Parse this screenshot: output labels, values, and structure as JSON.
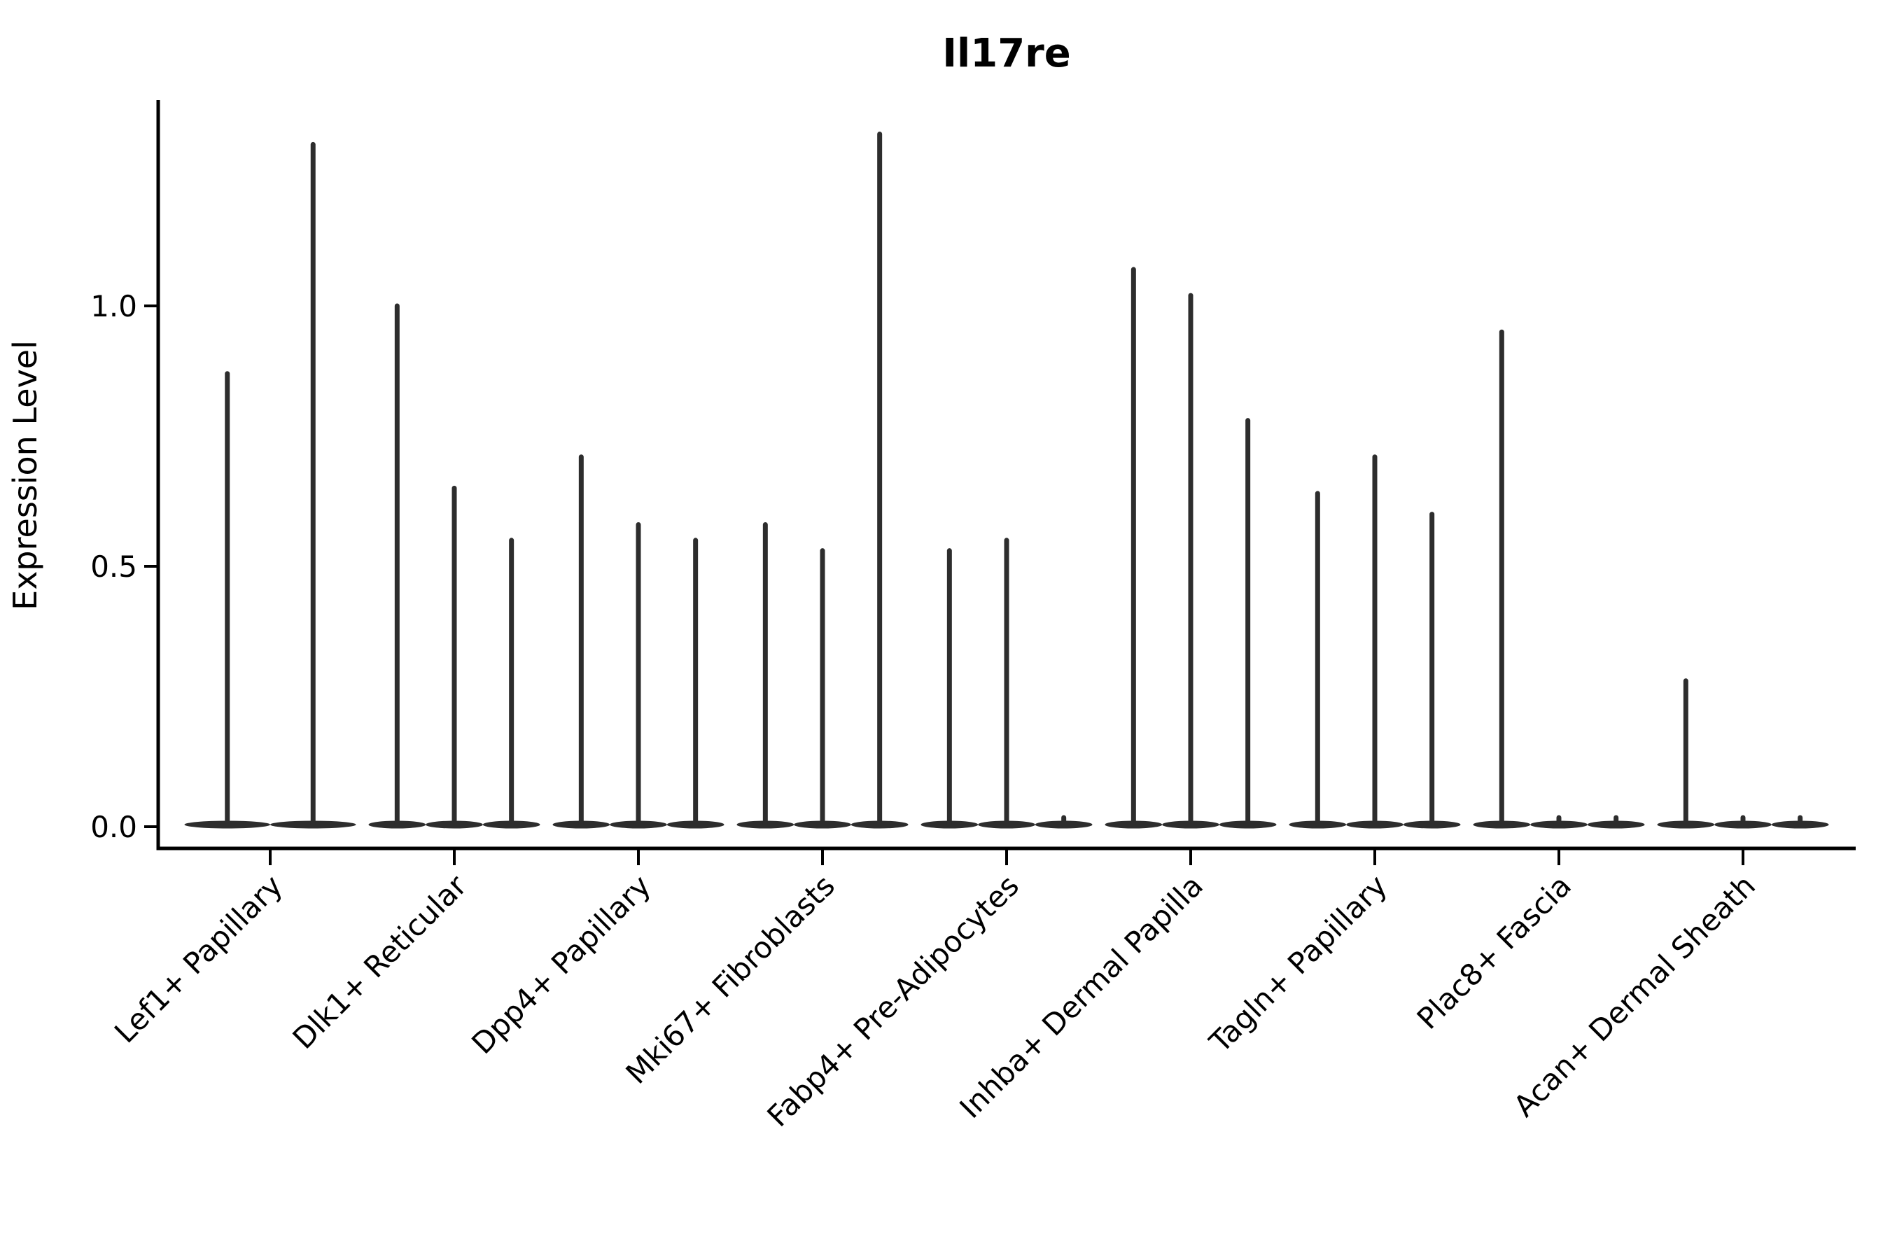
{
  "chart_data": {
    "type": "violin",
    "title": "Il17re",
    "ylabel": "Expression Level",
    "xlabel": "",
    "yticks": [
      "0.0",
      "0.5",
      "1.0"
    ],
    "ytick_values": [
      0.0,
      0.5,
      1.0
    ],
    "ylim": [
      0.0,
      1.395
    ],
    "grid": false,
    "legend": "none",
    "ink_color": "#2d2d2d",
    "spine_color": "#000000",
    "categories": [
      "Lef1+ Papillary",
      "Dlk1+ Reticular",
      "Dpp4+ Papillary",
      "Mki67+ Fibroblasts",
      "Fabp4+ Pre-Adipocytes",
      "Inhba+ Dermal Papilla",
      "Tagln+ Papillary",
      "Plac8+ Fascia",
      "Acan+ Dermal Sheath"
    ],
    "groups": [
      {
        "label": "Lef1+ Papillary",
        "violin_maxima": [
          0.87,
          1.31
        ]
      },
      {
        "label": "Dlk1+ Reticular",
        "violin_maxima": [
          1.0,
          0.65,
          0.55
        ]
      },
      {
        "label": "Dpp4+ Papillary",
        "violin_maxima": [
          0.71,
          0.58,
          0.55
        ]
      },
      {
        "label": "Mki67+ Fibroblasts",
        "violin_maxima": [
          0.58,
          0.53,
          1.33
        ]
      },
      {
        "label": "Fabp4+ Pre-Adipocytes",
        "violin_maxima": [
          0.53,
          0.55,
          0
        ]
      },
      {
        "label": "Inhba+ Dermal Papilla",
        "violin_maxima": [
          1.07,
          1.02,
          0.78
        ]
      },
      {
        "label": "Tagln+ Papillary",
        "violin_maxima": [
          0.64,
          0.71,
          0.6
        ]
      },
      {
        "label": "Plac8+ Fascia",
        "violin_maxima": [
          0.95,
          0,
          0
        ]
      },
      {
        "label": "Acan+ Dermal Sheath",
        "violin_maxima": [
          0.28,
          0,
          0
        ]
      }
    ]
  }
}
